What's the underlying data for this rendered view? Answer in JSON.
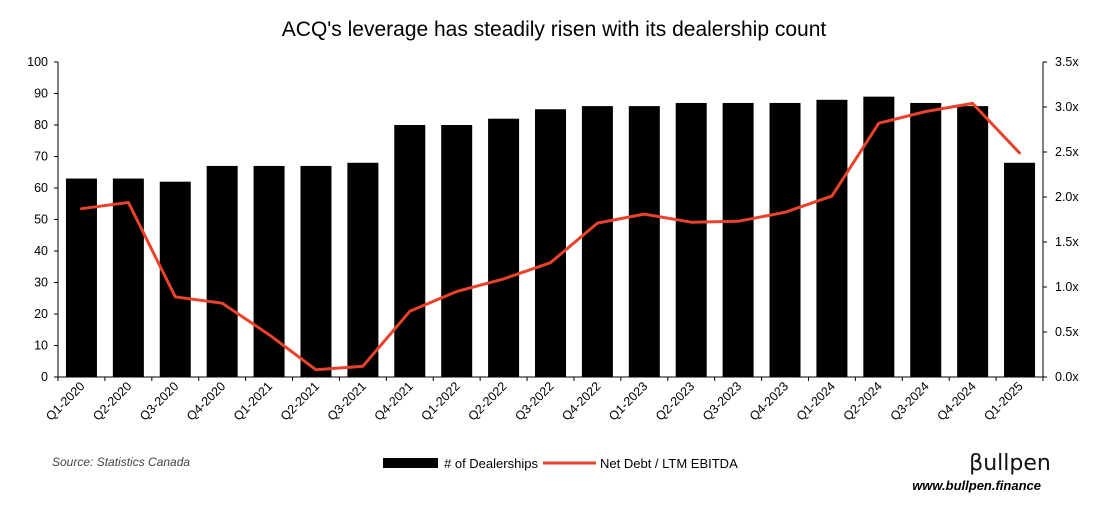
{
  "chart_data": {
    "type": "bar",
    "title": "ACQ's leverage has steadily risen with its dealership count",
    "categories": [
      "Q1-2020",
      "Q2-2020",
      "Q3-2020",
      "Q4-2020",
      "Q1-2021",
      "Q2-2021",
      "Q3-2021",
      "Q4-2021",
      "Q1-2022",
      "Q2-2022",
      "Q3-2022",
      "Q4-2022",
      "Q1-2023",
      "Q2-2023",
      "Q3-2023",
      "Q4-2023",
      "Q1-2024",
      "Q2-2024",
      "Q3-2024",
      "Q4-2024",
      "Q1-2025"
    ],
    "series": [
      {
        "name": "# of Dealerships",
        "kind": "bar",
        "axis": "left",
        "color": "#000000",
        "values": [
          63,
          63,
          62,
          67,
          67,
          67,
          68,
          80,
          80,
          82,
          85,
          86,
          86,
          87,
          87,
          87,
          88,
          89,
          87,
          86,
          68
        ]
      },
      {
        "name": "Net Debt / LTM EBITDA",
        "kind": "line",
        "axis": "right",
        "color": "#e8412c",
        "values": [
          1.87,
          1.94,
          0.89,
          0.82,
          0.47,
          0.08,
          0.12,
          0.73,
          0.95,
          1.09,
          1.27,
          1.71,
          1.81,
          1.72,
          1.73,
          1.83,
          2.01,
          2.82,
          2.95,
          3.04,
          2.49
        ]
      }
    ],
    "y_left": {
      "min": 0,
      "max": 100,
      "step": 10,
      "ticks": [
        "0",
        "10",
        "20",
        "30",
        "40",
        "50",
        "60",
        "70",
        "80",
        "90",
        "100"
      ]
    },
    "y_right": {
      "min": 0,
      "max": 3.5,
      "step": 0.5,
      "ticks": [
        "0.0x",
        "0.5x",
        "1.0x",
        "1.5x",
        "2.0x",
        "2.5x",
        "3.0x",
        "3.5x"
      ]
    },
    "legend_position": "bottom-center",
    "grid": false
  },
  "footer": {
    "source": "Source: Statistics Canada",
    "brand_name": "βullpen",
    "brand_url": "www.bullpen.finance"
  }
}
